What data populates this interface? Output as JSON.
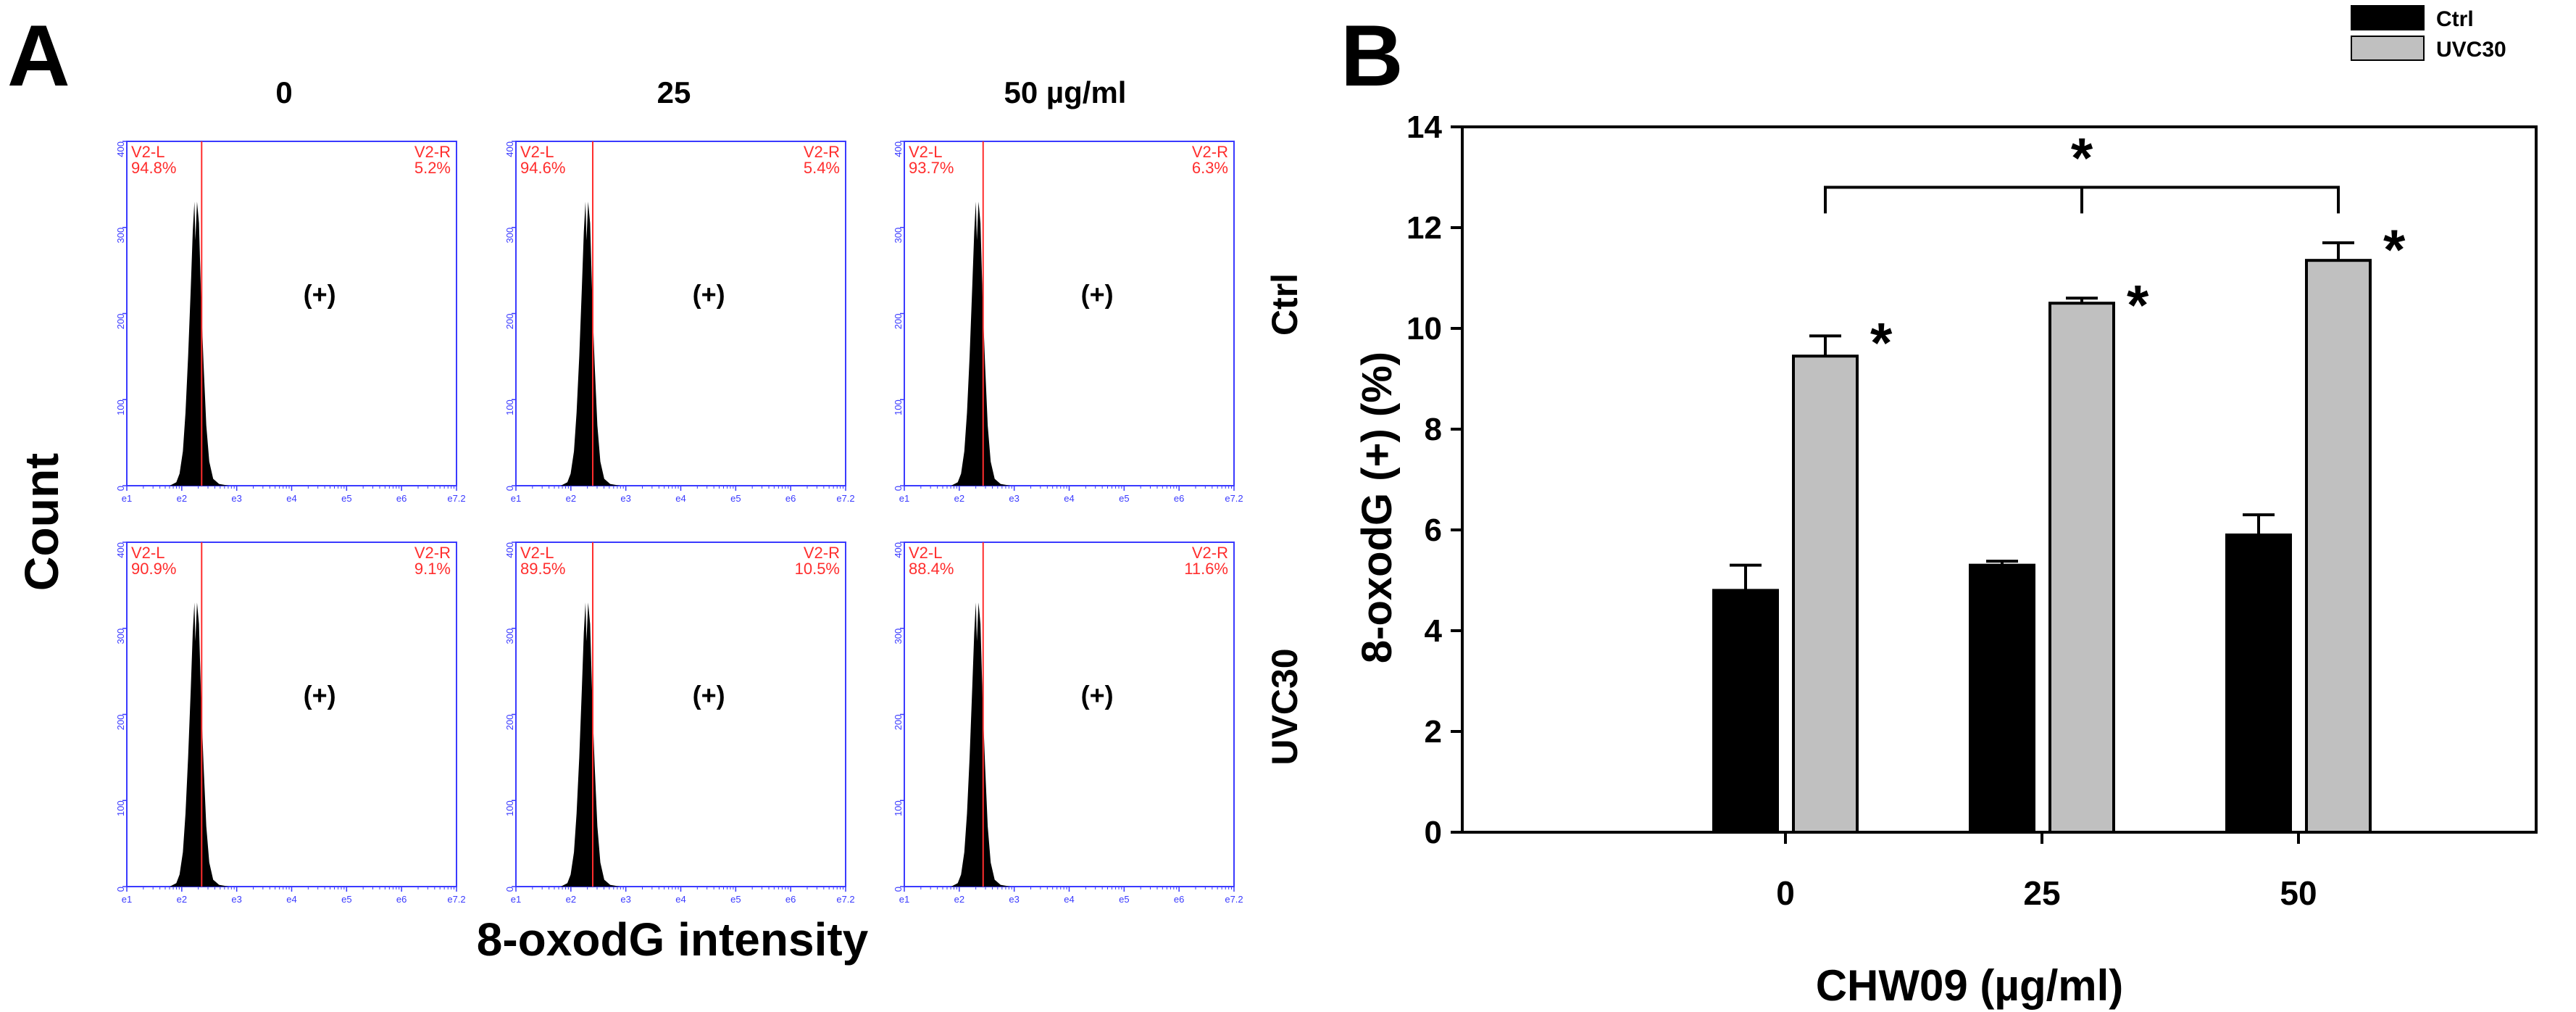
{
  "panel_a": {
    "letter": "A",
    "concentration_labels": [
      "0",
      "25",
      "50 µg/ml"
    ],
    "row_labels": [
      "Ctrl",
      "UVC30"
    ],
    "y_axis_label": "Count",
    "x_axis_label": "8-oxodG intensity",
    "positive_label": "(+)",
    "hist_y_ticks": [
      "0",
      "100",
      "200",
      "300",
      "400"
    ],
    "hist_x_ticks": [
      "10^1",
      "10^2",
      "10^3",
      "10^4",
      "10^5",
      "10^6",
      "10^7.2"
    ],
    "hist_x_tick_text": [
      "e1",
      "e2",
      "e3",
      "e4",
      "e5",
      "e6",
      "e7.2"
    ],
    "gate_left_name": "V2-L",
    "gate_right_name": "V2-R",
    "gates": [
      {
        "row": "Ctrl",
        "conc": "0",
        "left_pct": "94.8%",
        "right_pct": "5.2%"
      },
      {
        "row": "Ctrl",
        "conc": "25",
        "left_pct": "94.6%",
        "right_pct": "5.4%"
      },
      {
        "row": "Ctrl",
        "conc": "50",
        "left_pct": "93.7%",
        "right_pct": "6.3%"
      },
      {
        "row": "UVC30",
        "conc": "0",
        "left_pct": "90.9%",
        "right_pct": "9.1%"
      },
      {
        "row": "UVC30",
        "conc": "25",
        "left_pct": "89.5%",
        "right_pct": "10.5%"
      },
      {
        "row": "UVC30",
        "conc": "50",
        "left_pct": "88.4%",
        "right_pct": "11.6%"
      }
    ],
    "colors": {
      "frame": "#3a3aff",
      "gate": "#ff2d2d",
      "histogram": "#000000"
    }
  },
  "chart_data": {
    "type": "bar",
    "letter": "B",
    "categories": [
      "0",
      "25",
      "50"
    ],
    "series": [
      {
        "name": "Ctrl",
        "values": [
          4.8,
          5.3,
          5.9
        ],
        "errors": [
          0.5,
          0.08,
          0.4
        ],
        "color": "#000000"
      },
      {
        "name": "UVC30",
        "values": [
          9.45,
          10.5,
          11.35
        ],
        "errors": [
          0.4,
          0.1,
          0.35
        ],
        "color": "#c0c0c0"
      }
    ],
    "xlabel": "CHW09 (µg/ml)",
    "ylabel": "8-oxodG (+) (%)",
    "ylim": [
      0,
      14
    ],
    "yticks": [
      "0",
      "2",
      "4",
      "6",
      "8",
      "10",
      "12",
      "14"
    ],
    "legend": [
      "Ctrl",
      "UVC30"
    ],
    "legend_position": "top-right",
    "significance_marker": "*",
    "bracket_mark": "*"
  }
}
